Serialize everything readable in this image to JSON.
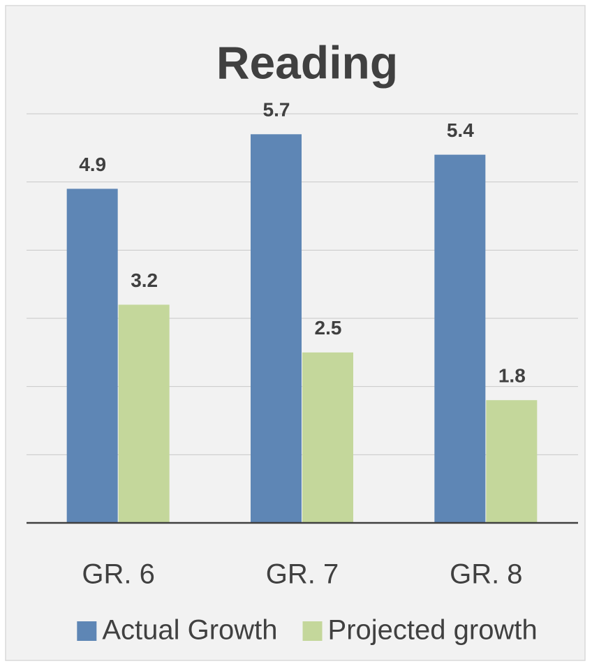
{
  "chart_data": {
    "type": "bar",
    "title": "Reading",
    "categories": [
      "GR. 6",
      "GR. 7",
      "GR. 8"
    ],
    "series": [
      {
        "name": "Actual Growth",
        "color": "#5e86b5",
        "values": [
          4.9,
          5.7,
          5.4
        ]
      },
      {
        "name": "Projected growth",
        "color": "#c4d79b",
        "values": [
          3.2,
          2.5,
          1.8
        ]
      }
    ],
    "ylim": [
      0,
      6
    ],
    "yticks": [
      0,
      1,
      2,
      3,
      4,
      5,
      6
    ],
    "grid": true,
    "legend": "bottom"
  }
}
